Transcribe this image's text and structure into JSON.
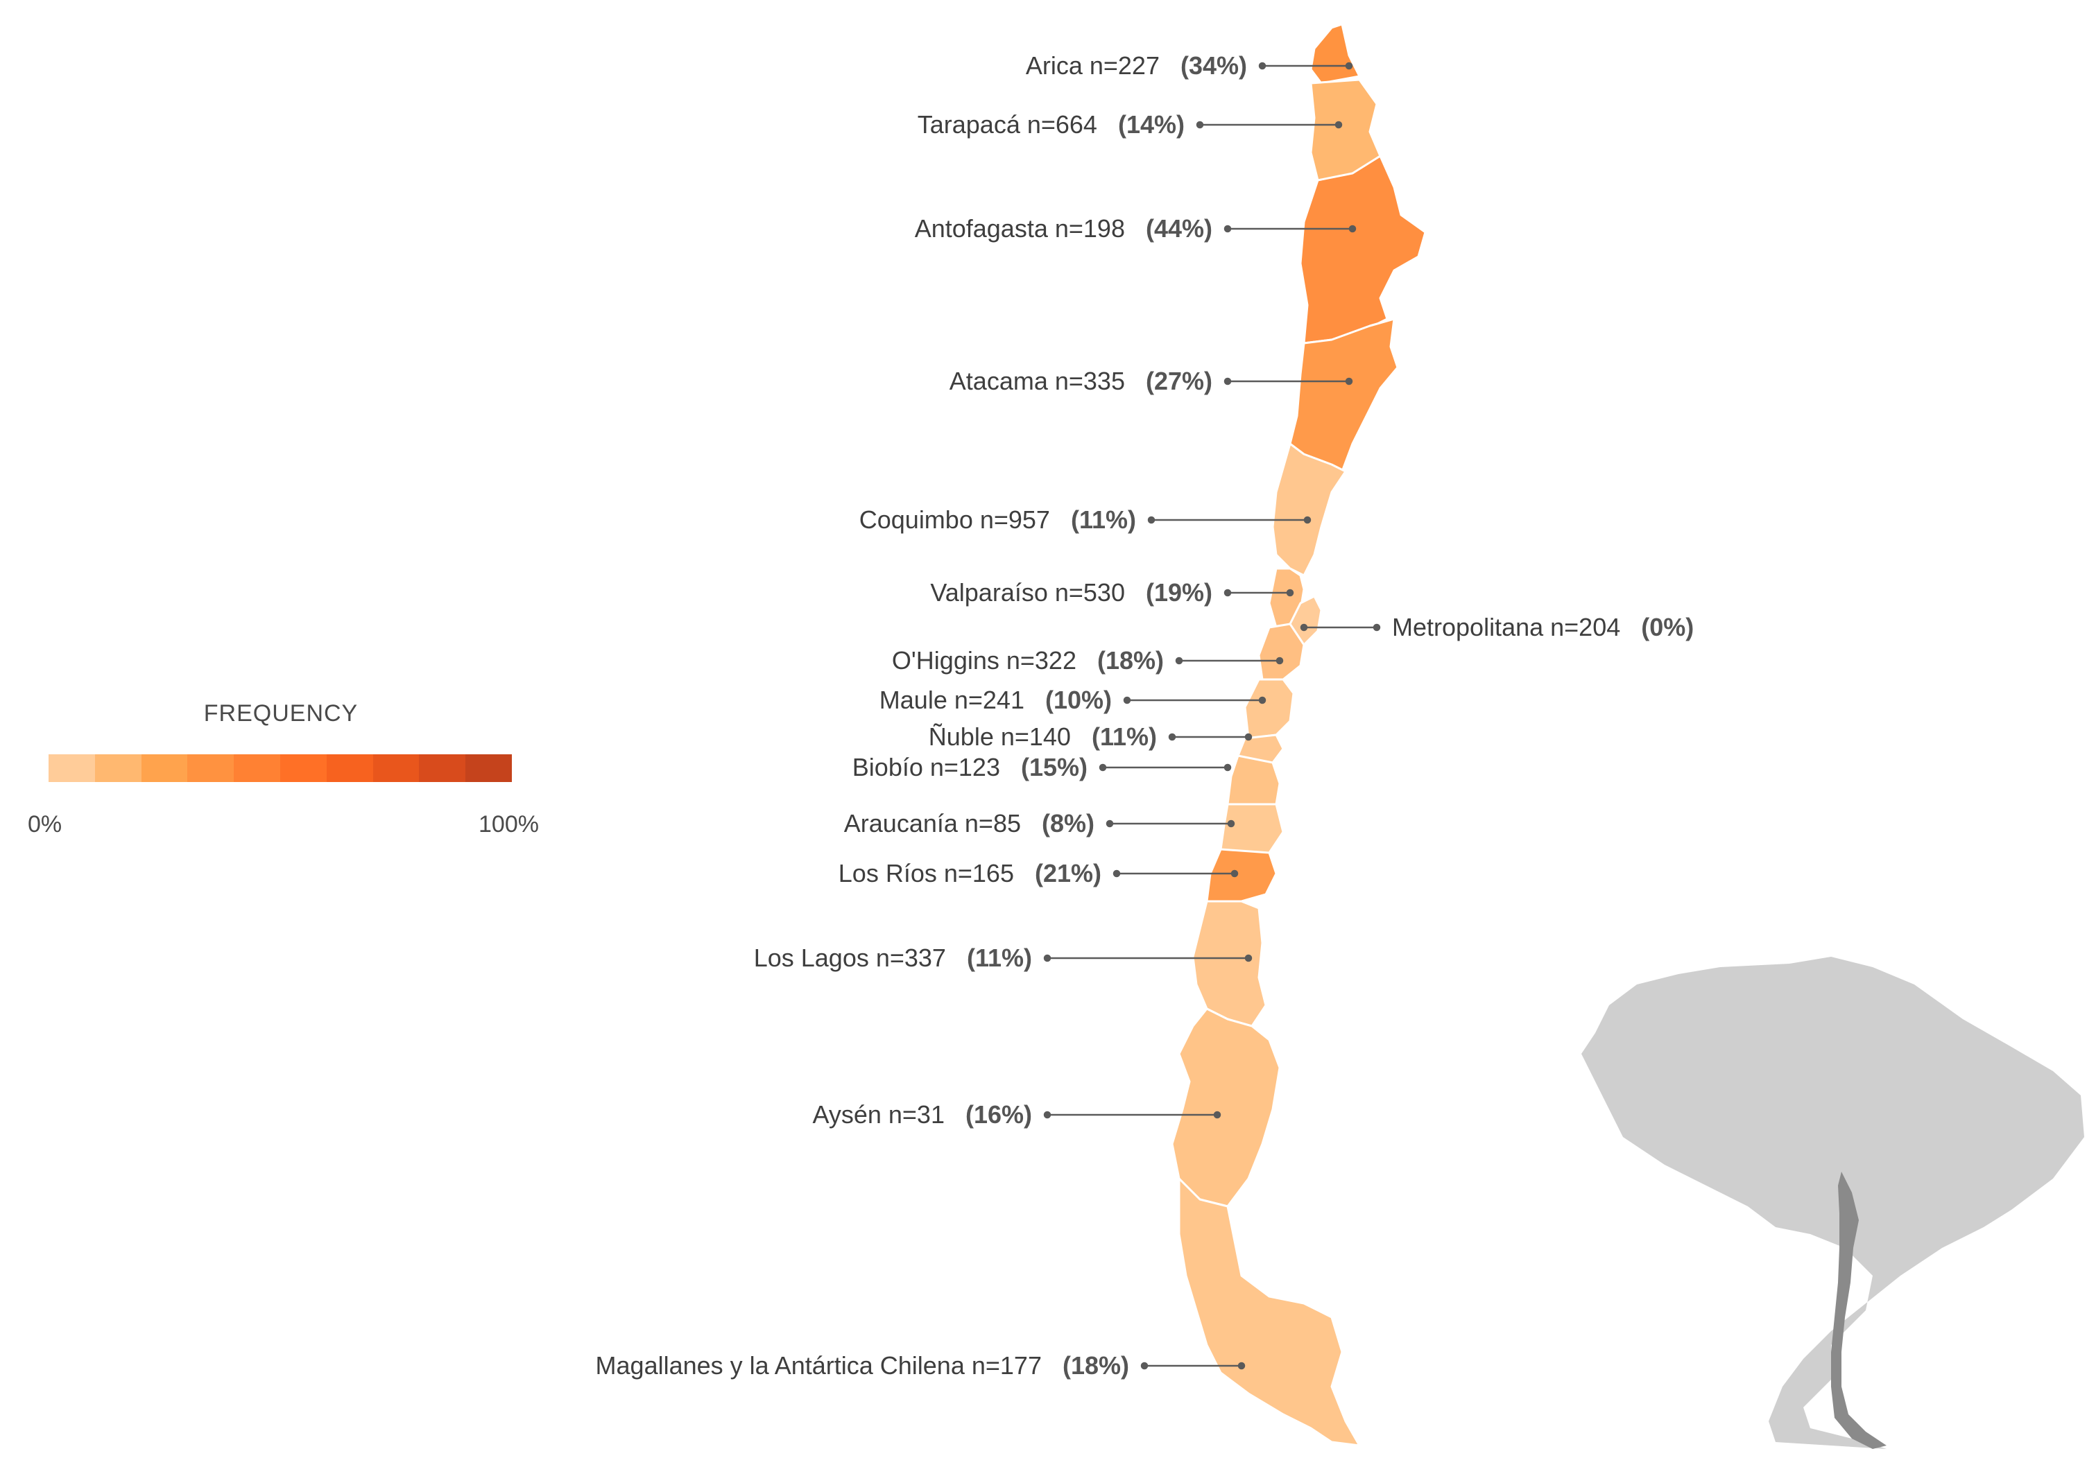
{
  "legend": {
    "title": "FREQUENCY",
    "min_label": "0%",
    "max_label": "100%",
    "scale_colors": [
      "#ffcc99",
      "#ffb870",
      "#ffa34d",
      "#ff9240",
      "#ff8133",
      "#ff7026",
      "#f7621f",
      "#e9561c",
      "#d84b1c",
      "#c5431c"
    ]
  },
  "regions": [
    {
      "name": "Arica n=227",
      "pct_label": "(34%)",
      "value": 34,
      "color": "#ff9340"
    },
    {
      "name": "Tarapacá n=664",
      "pct_label": "(14%)",
      "value": 14,
      "color": "#ffb870"
    },
    {
      "name": "Antofagasta n=198",
      "pct_label": "(44%)",
      "value": 44,
      "color": "#ff8f40"
    },
    {
      "name": "Atacama n=335",
      "pct_label": "(27%)",
      "value": 27,
      "color": "#ff9a4a"
    },
    {
      "name": "Coquimbo n=957",
      "pct_label": "(11%)",
      "value": 11,
      "color": "#ffc78f"
    },
    {
      "name": "Valparaíso n=530",
      "pct_label": "(19%)",
      "value": 19,
      "color": "#ffbe80"
    },
    {
      "name": "Metropolitana n=204",
      "pct_label": "(0%)",
      "value": 0,
      "color": "#ffcc99"
    },
    {
      "name": "O'Higgins n=322",
      "pct_label": "(18%)",
      "value": 18,
      "color": "#ffbf82"
    },
    {
      "name": "Maule n=241",
      "pct_label": "(10%)",
      "value": 10,
      "color": "#ffc890"
    },
    {
      "name": "Ñuble n=140",
      "pct_label": "(11%)",
      "value": 11,
      "color": "#ffc78f"
    },
    {
      "name": "Biobío n=123",
      "pct_label": "(15%)",
      "value": 15,
      "color": "#ffc386"
    },
    {
      "name": "Araucanía n=85",
      "pct_label": "(8%)",
      "value": 8,
      "color": "#ffca93"
    },
    {
      "name": "Los Ríos n=165",
      "pct_label": "(21%)",
      "value": 21,
      "color": "#ff9a4a"
    },
    {
      "name": "Los Lagos n=337",
      "pct_label": "(11%)",
      "value": 11,
      "color": "#ffc78f"
    },
    {
      "name": "Aysén n=31",
      "pct_label": "(16%)",
      "value": 16,
      "color": "#ffc488"
    },
    {
      "name": "Magallanes y la Antártica Chilena n=177",
      "pct_label": "(18%)",
      "value": 18,
      "color": "#ffc68c"
    }
  ],
  "inset": {
    "continent_color": "#cfcfcf",
    "highlight_color": "#8a8a8a"
  }
}
